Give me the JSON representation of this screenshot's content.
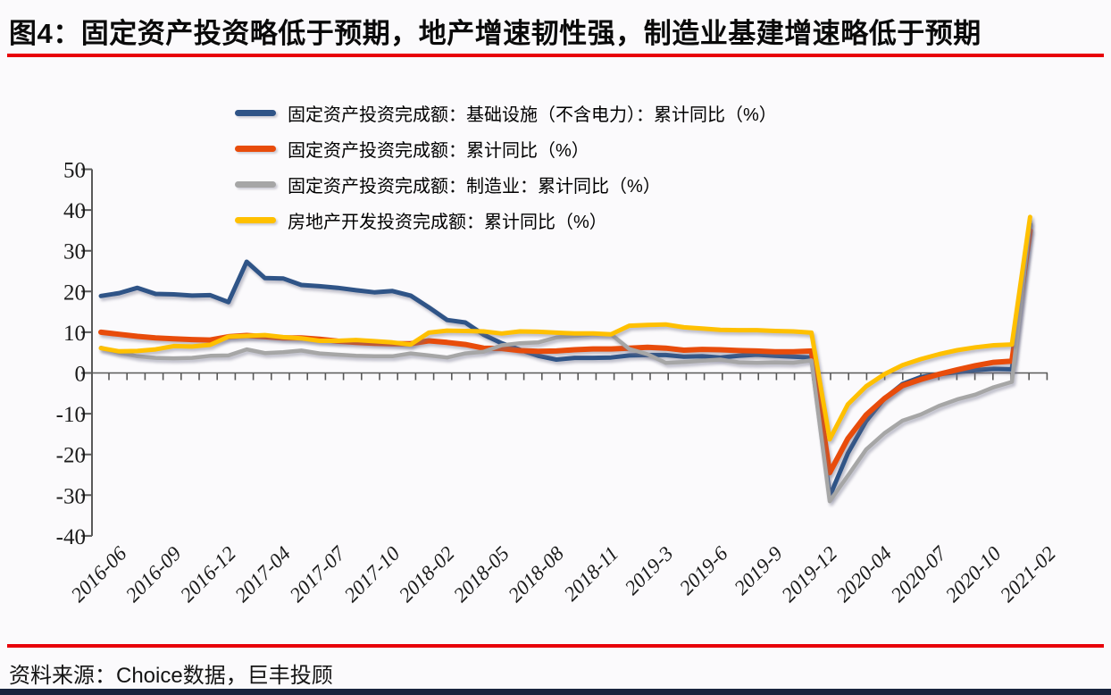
{
  "title": "图4：固定资产投资略低于预期，地产增速韧性强，制造业基建增速略低于预期",
  "source": "资料来源：Choice数据，巨丰投顾",
  "colors": {
    "title_text": "#0a0a0a",
    "rule_red": "#e80009",
    "axis": "#595959",
    "bottom_bar": "#18243e",
    "background": "#fbfafc",
    "series_blue": "#2f5487",
    "series_orange": "#e84c0b",
    "series_gray": "#a6a6a6",
    "series_yellow": "#ffc000"
  },
  "chart_data": {
    "type": "line",
    "title": "",
    "xlabel": "",
    "ylabel": "",
    "ylim": [
      -40,
      50
    ],
    "y_ticks": [
      50,
      40,
      30,
      20,
      10,
      0,
      -10,
      -20,
      -30,
      -40
    ],
    "grid": false,
    "legend_position": "top-left",
    "x": [
      "2016-06",
      "2016-07",
      "2016-08",
      "2016-09",
      "2016-10",
      "2016-11",
      "2016-12",
      "2017-02",
      "2017-03",
      "2017-04",
      "2017-05",
      "2017-06",
      "2017-07",
      "2017-08",
      "2017-09",
      "2017-10",
      "2017-11",
      "2017-12",
      "2018-02",
      "2018-03",
      "2018-04",
      "2018-05",
      "2018-06",
      "2018-07",
      "2018-08",
      "2018-09",
      "2018-10",
      "2018-11",
      "2018-12",
      "2019-02",
      "2019-03",
      "2019-04",
      "2019-05",
      "2019-06",
      "2019-07",
      "2019-08",
      "2019-09",
      "2019-10",
      "2019-11",
      "2019-12",
      "2020-02",
      "2020-03",
      "2020-04",
      "2020-05",
      "2020-06",
      "2020-07",
      "2020-08",
      "2020-09",
      "2020-10",
      "2020-11",
      "2020-12",
      "2021-02"
    ],
    "x_tick_every": 3,
    "x_tick_labels": [
      "2016-06",
      "2016-09",
      "2016-12",
      "2017-04",
      "2017-07",
      "2017-10",
      "2018-02",
      "2018-05",
      "2018-08",
      "2018-11",
      "2019-3",
      "2019-6",
      "2019-9",
      "2019-12",
      "2020-04",
      "2020-07",
      "2020-10",
      "2021-02"
    ],
    "series": [
      {
        "name": "固定资产投资完成额：基础设施（不含电力）：累计同比（%）",
        "color": "#2f5487",
        "values": [
          18.9,
          19.6,
          20.9,
          19.4,
          19.3,
          19.0,
          19.1,
          17.4,
          27.3,
          23.3,
          23.2,
          21.6,
          21.3,
          20.9,
          20.3,
          19.8,
          20.1,
          19.0,
          16.1,
          13.0,
          12.4,
          9.4,
          7.3,
          5.7,
          4.2,
          3.3,
          3.7,
          3.7,
          3.8,
          4.3,
          4.4,
          4.4,
          4.0,
          4.1,
          3.8,
          4.2,
          4.5,
          4.2,
          4.0,
          3.8,
          -30.3,
          -19.7,
          -11.8,
          -6.3,
          -2.7,
          -1.0,
          -0.3,
          0.2,
          0.7,
          1.0,
          0.9,
          36.6
        ]
      },
      {
        "name": "固定资产投资完成额：累计同比（%）",
        "color": "#e84c0b",
        "values": [
          10.0,
          9.5,
          9.0,
          8.6,
          8.4,
          8.2,
          8.1,
          8.9,
          9.2,
          8.9,
          8.6,
          8.6,
          8.3,
          7.8,
          7.5,
          7.3,
          7.2,
          7.2,
          7.9,
          7.5,
          7.0,
          6.1,
          6.0,
          5.5,
          5.3,
          5.4,
          5.7,
          5.9,
          5.9,
          6.1,
          6.3,
          6.1,
          5.6,
          5.8,
          5.7,
          5.5,
          5.4,
          5.2,
          5.2,
          5.4,
          -24.5,
          -16.1,
          -10.3,
          -6.3,
          -3.1,
          -1.6,
          -0.3,
          0.8,
          1.8,
          2.6,
          2.9,
          35.0
        ]
      },
      {
        "name": "固定资产投资完成额：制造业：累计同比（%）",
        "color": "#a6a6a6",
        "values": [
          6.2,
          5.0,
          4.1,
          3.7,
          3.6,
          3.7,
          4.2,
          4.3,
          5.8,
          4.9,
          5.1,
          5.5,
          4.8,
          4.5,
          4.2,
          4.1,
          4.1,
          4.8,
          4.3,
          3.8,
          4.8,
          5.2,
          6.8,
          7.3,
          7.5,
          8.7,
          9.1,
          9.5,
          9.5,
          5.9,
          4.6,
          2.5,
          2.7,
          3.0,
          3.3,
          2.6,
          2.5,
          2.6,
          2.5,
          3.1,
          -31.5,
          -25.2,
          -18.8,
          -14.8,
          -11.7,
          -10.2,
          -8.1,
          -6.5,
          -5.3,
          -3.5,
          -2.2,
          37.3
        ]
      },
      {
        "name": "房地产开发投资完成额：累计同比（%）",
        "color": "#ffc000",
        "values": [
          6.1,
          5.3,
          5.4,
          5.8,
          6.6,
          6.5,
          6.9,
          8.9,
          9.1,
          9.3,
          8.8,
          8.5,
          7.9,
          7.9,
          8.1,
          7.8,
          7.5,
          7.0,
          9.9,
          10.4,
          10.3,
          10.2,
          9.7,
          10.2,
          10.1,
          9.9,
          9.7,
          9.7,
          9.5,
          11.6,
          11.8,
          11.9,
          11.2,
          10.9,
          10.6,
          10.5,
          10.5,
          10.3,
          10.2,
          9.9,
          -16.3,
          -7.7,
          -3.3,
          -0.3,
          1.9,
          3.4,
          4.6,
          5.6,
          6.3,
          6.8,
          7.0,
          38.3
        ]
      }
    ]
  }
}
